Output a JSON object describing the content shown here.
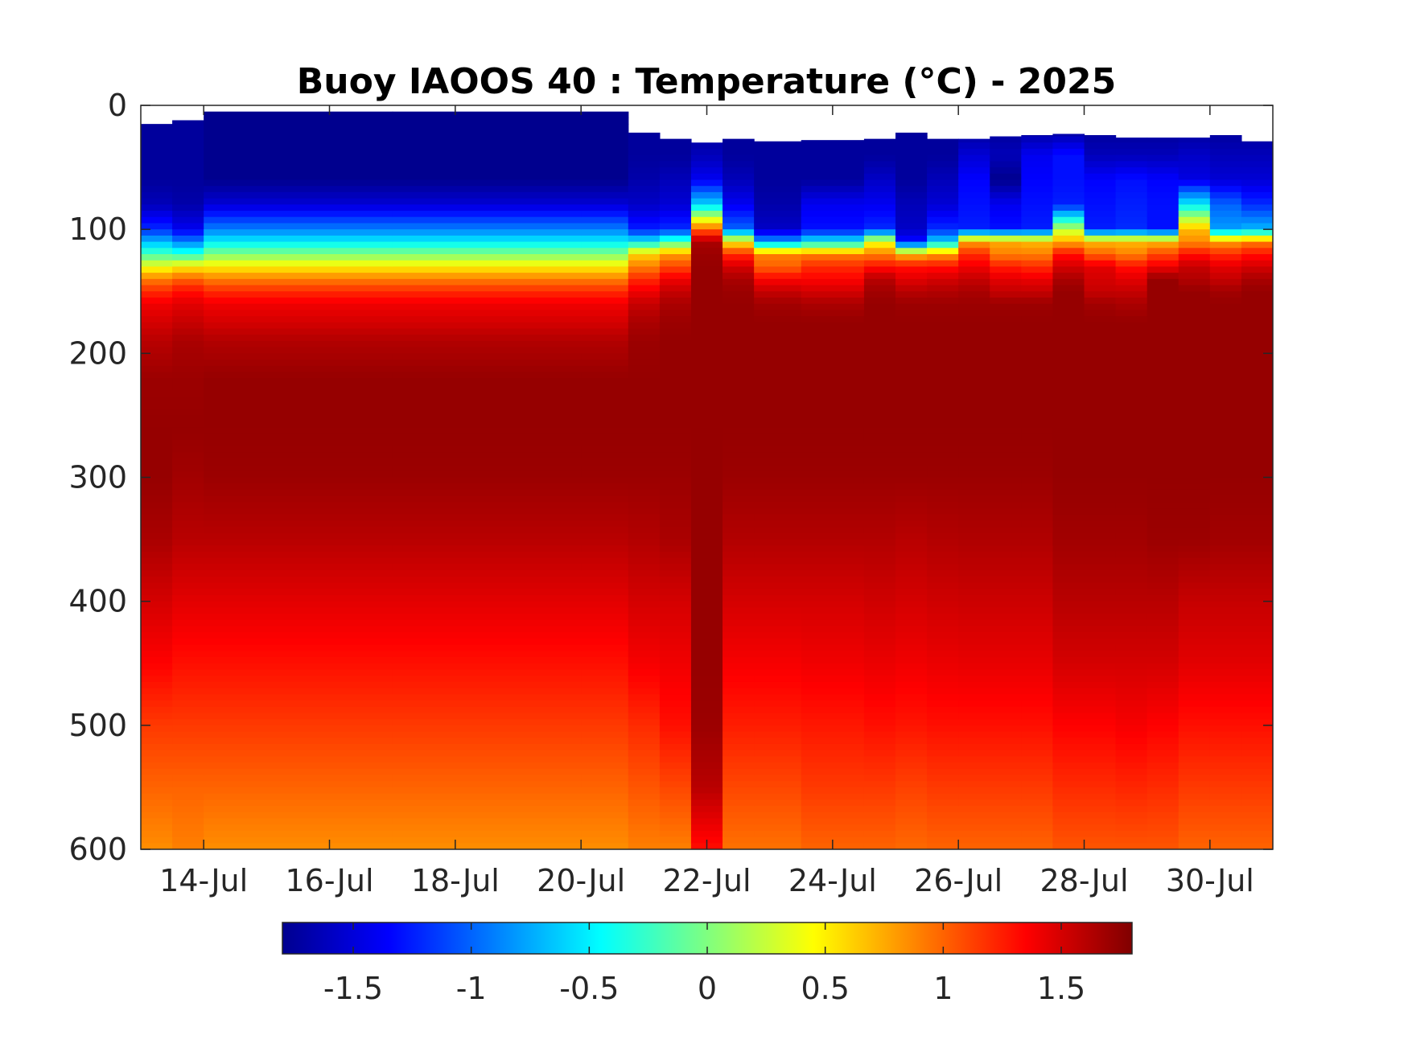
{
  "chart_data": {
    "type": "heatmap",
    "title": "Buoy IAOOS 40 : Temperature (°C) - 2025",
    "xlabel": "",
    "ylabel": "",
    "x_axis": {
      "unit": "date",
      "year": 2025,
      "range": [
        "2025-07-13",
        "2025-07-31"
      ],
      "tick_labels": [
        "14-Jul",
        "16-Jul",
        "18-Jul",
        "20-Jul",
        "22-Jul",
        "24-Jul",
        "26-Jul",
        "28-Jul",
        "30-Jul"
      ],
      "tick_dates": [
        "2025-07-14",
        "2025-07-16",
        "2025-07-18",
        "2025-07-20",
        "2025-07-22",
        "2025-07-24",
        "2025-07-26",
        "2025-07-28",
        "2025-07-30"
      ]
    },
    "y_axis": {
      "range": [
        0,
        600
      ],
      "reversed": true,
      "tick_values": [
        0,
        100,
        200,
        300,
        400,
        500,
        600
      ],
      "tick_labels": [
        "0",
        "100",
        "200",
        "300",
        "400",
        "500",
        "600"
      ]
    },
    "colorbar": {
      "colormap": "jet",
      "range": [
        -1.8,
        1.8
      ],
      "tick_values": [
        -1.5,
        -1,
        -0.5,
        0,
        0.5,
        1,
        1.5
      ],
      "tick_labels": [
        "-1.5",
        "-1",
        "-0.5",
        "0",
        "0.5",
        "1",
        "1.5"
      ],
      "orientation": "horizontal",
      "placement": "bottom"
    },
    "profile_depth_levels": [
      0,
      20,
      40,
      60,
      80,
      100,
      110,
      120,
      130,
      140,
      150,
      160,
      175,
      190,
      220,
      260,
      300,
      350,
      400,
      450,
      500,
      550,
      600
    ],
    "profiles": [
      {
        "date": "2025-07-13.0",
        "top_depth": 15,
        "temperature": [
          -1.7,
          -1.7,
          -1.7,
          -1.7,
          -1.6,
          -1.2,
          -0.7,
          -0.2,
          0.4,
          0.9,
          1.2,
          1.4,
          1.5,
          1.6,
          1.7,
          1.72,
          1.72,
          1.65,
          1.5,
          1.35,
          1.15,
          1.0,
          0.85
        ]
      },
      {
        "date": "2025-07-13.5",
        "top_depth": 12,
        "temperature": [
          -1.7,
          -1.7,
          -1.7,
          -1.7,
          -1.65,
          -1.4,
          -0.9,
          -0.3,
          0.5,
          1.0,
          1.3,
          1.45,
          1.55,
          1.65,
          1.7,
          1.72,
          1.68,
          1.6,
          1.45,
          1.3,
          1.15,
          1.0,
          0.9
        ]
      },
      {
        "date": "2025-07-14.0",
        "top_depth": 5,
        "temperature": [
          -1.75,
          -1.75,
          -1.75,
          -1.75,
          -1.5,
          -0.9,
          -0.5,
          0.0,
          0.5,
          0.9,
          1.2,
          1.4,
          1.5,
          1.62,
          1.72,
          1.72,
          1.7,
          1.6,
          1.45,
          1.3,
          1.15,
          1.0,
          0.85
        ]
      },
      {
        "date": "2025-07-17.0",
        "top_depth": 5,
        "temperature": [
          -1.75,
          -1.75,
          -1.75,
          -1.75,
          -1.5,
          -0.9,
          -0.5,
          0.0,
          0.5,
          0.9,
          1.2,
          1.4,
          1.5,
          1.62,
          1.72,
          1.72,
          1.7,
          1.6,
          1.45,
          1.3,
          1.15,
          1.0,
          0.85
        ]
      },
      {
        "date": "2025-07-20.0",
        "top_depth": 5,
        "temperature": [
          -1.75,
          -1.75,
          -1.75,
          -1.75,
          -1.5,
          -0.9,
          -0.5,
          0.0,
          0.5,
          0.9,
          1.2,
          1.4,
          1.5,
          1.62,
          1.72,
          1.72,
          1.7,
          1.6,
          1.45,
          1.3,
          1.15,
          1.0,
          0.85
        ]
      },
      {
        "date": "2025-07-20.75",
        "top_depth": 22,
        "temperature": [
          -1.7,
          -1.7,
          -1.7,
          -1.65,
          -1.55,
          -1.25,
          -0.5,
          0.6,
          0.9,
          1.2,
          1.4,
          1.55,
          1.65,
          1.7,
          1.72,
          1.72,
          1.7,
          1.62,
          1.5,
          1.38,
          1.2,
          1.05,
          0.9
        ]
      },
      {
        "date": "2025-07-21.25",
        "top_depth": 27,
        "temperature": [
          -1.7,
          -1.7,
          -1.7,
          -1.6,
          -1.5,
          -1.2,
          -0.2,
          0.8,
          1.1,
          1.4,
          1.55,
          1.65,
          1.7,
          1.72,
          1.72,
          1.72,
          1.7,
          1.65,
          1.5,
          1.4,
          1.3,
          1.1,
          0.9
        ]
      },
      {
        "date": "2025-07-21.75",
        "top_depth": 30,
        "temperature": [
          -1.7,
          -1.7,
          -1.6,
          -1.4,
          -0.6,
          1.0,
          1.65,
          1.7,
          1.72,
          1.72,
          1.72,
          1.72,
          1.72,
          1.72,
          1.72,
          1.72,
          1.72,
          1.72,
          1.72,
          1.72,
          1.7,
          1.6,
          1.3
        ]
      },
      {
        "date": "2025-07-22.25",
        "top_depth": 27,
        "temperature": [
          -1.7,
          -1.7,
          -1.7,
          -1.6,
          -1.4,
          -1.0,
          0.5,
          1.2,
          1.5,
          1.65,
          1.7,
          1.72,
          1.72,
          1.72,
          1.72,
          1.72,
          1.7,
          1.62,
          1.5,
          1.38,
          1.25,
          1.1,
          0.95
        ]
      },
      {
        "date": "2025-07-22.75",
        "top_depth": 29,
        "temperature": [
          -1.7,
          -1.7,
          -1.7,
          -1.7,
          -1.65,
          -1.55,
          -0.8,
          0.9,
          1.0,
          1.35,
          1.55,
          1.68,
          1.72,
          1.72,
          1.72,
          1.72,
          1.7,
          1.62,
          1.5,
          1.38,
          1.25,
          1.1,
          0.95
        ]
      },
      {
        "date": "2025-07-23.5",
        "top_depth": 28,
        "temperature": [
          -1.7,
          -1.7,
          -1.7,
          -1.7,
          -1.4,
          -1.3,
          -0.5,
          0.9,
          1.2,
          1.35,
          1.5,
          1.65,
          1.72,
          1.72,
          1.72,
          1.72,
          1.7,
          1.62,
          1.5,
          1.4,
          1.27,
          1.15,
          1.0
        ]
      },
      {
        "date": "2025-07-24.5",
        "top_depth": 27,
        "temperature": [
          -1.7,
          -1.7,
          -1.7,
          -1.55,
          -1.4,
          -1.2,
          0.4,
          0.9,
          1.3,
          1.6,
          1.68,
          1.72,
          1.72,
          1.72,
          1.72,
          1.72,
          1.7,
          1.62,
          1.52,
          1.42,
          1.3,
          1.15,
          1.0
        ]
      },
      {
        "date": "2025-07-25.0",
        "top_depth": 22,
        "temperature": [
          -1.7,
          -1.7,
          -1.7,
          -1.7,
          -1.6,
          -1.55,
          -1.3,
          0.7,
          1.3,
          1.45,
          1.6,
          1.7,
          1.72,
          1.72,
          1.72,
          1.72,
          1.7,
          1.6,
          1.5,
          1.4,
          1.28,
          1.12,
          0.98
        ]
      },
      {
        "date": "2025-07-25.5",
        "top_depth": 27,
        "temperature": [
          -1.7,
          -1.7,
          -1.7,
          -1.6,
          -1.5,
          -1.2,
          -0.6,
          0.8,
          1.3,
          1.5,
          1.62,
          1.7,
          1.72,
          1.72,
          1.72,
          1.72,
          1.7,
          1.62,
          1.52,
          1.42,
          1.3,
          1.15,
          1.0
        ]
      },
      {
        "date": "2025-07-26.0",
        "top_depth": 27,
        "temperature": [
          -1.7,
          -1.7,
          -1.5,
          -1.35,
          -1.3,
          -1.25,
          0.8,
          1.2,
          1.4,
          1.55,
          1.65,
          1.7,
          1.72,
          1.72,
          1.72,
          1.72,
          1.7,
          1.63,
          1.53,
          1.43,
          1.3,
          1.15,
          1.0
        ]
      },
      {
        "date": "2025-07-26.5",
        "top_depth": 25,
        "temperature": [
          -1.7,
          -1.7,
          -1.6,
          -1.75,
          -1.4,
          -1.3,
          0.75,
          0.9,
          1.25,
          1.45,
          1.55,
          1.7,
          1.72,
          1.72,
          1.72,
          1.72,
          1.7,
          1.63,
          1.53,
          1.43,
          1.3,
          1.15,
          1.0
        ]
      },
      {
        "date": "2025-07-27.0",
        "top_depth": 24,
        "temperature": [
          -1.7,
          -1.7,
          -1.4,
          -1.35,
          -1.3,
          -1.25,
          0.7,
          0.9,
          1.2,
          1.42,
          1.55,
          1.7,
          1.72,
          1.72,
          1.72,
          1.72,
          1.7,
          1.63,
          1.53,
          1.43,
          1.3,
          1.15,
          1.0
        ]
      },
      {
        "date": "2025-07-27.5",
        "top_depth": 23,
        "temperature": [
          -1.7,
          -1.7,
          -1.3,
          -1.3,
          -1.25,
          0.2,
          0.75,
          1.3,
          1.5,
          1.65,
          1.72,
          1.72,
          1.72,
          1.72,
          1.72,
          1.72,
          1.72,
          1.68,
          1.6,
          1.5,
          1.35,
          1.2,
          1.05
        ]
      },
      {
        "date": "2025-07-28.0",
        "top_depth": 24,
        "temperature": [
          -1.7,
          -1.7,
          -1.6,
          -1.35,
          -1.3,
          -1.25,
          0.7,
          1.0,
          1.45,
          1.5,
          1.55,
          1.68,
          1.72,
          1.72,
          1.72,
          1.72,
          1.72,
          1.68,
          1.6,
          1.5,
          1.35,
          1.2,
          1.05
        ]
      },
      {
        "date": "2025-07-28.5",
        "top_depth": 26,
        "temperature": [
          -1.7,
          -1.7,
          -1.6,
          -1.3,
          -1.25,
          -1.2,
          0.7,
          0.9,
          1.3,
          1.45,
          1.55,
          1.65,
          1.72,
          1.72,
          1.72,
          1.72,
          1.72,
          1.68,
          1.6,
          1.5,
          1.38,
          1.22,
          1.05
        ]
      },
      {
        "date": "2025-07-29.0",
        "top_depth": 26,
        "temperature": [
          -1.7,
          -1.7,
          -1.6,
          -1.35,
          -1.3,
          -1.3,
          0.7,
          1.1,
          1.4,
          1.72,
          1.72,
          1.72,
          1.72,
          1.72,
          1.72,
          1.72,
          1.72,
          1.7,
          1.6,
          1.5,
          1.35,
          1.2,
          1.05
        ]
      },
      {
        "date": "2025-07-29.5",
        "top_depth": 26,
        "temperature": [
          -1.7,
          -1.7,
          -1.55,
          -1.45,
          -0.5,
          0.7,
          0.85,
          1.3,
          1.55,
          1.62,
          1.72,
          1.72,
          1.72,
          1.72,
          1.72,
          1.72,
          1.72,
          1.7,
          1.55,
          1.45,
          1.3,
          1.15,
          1.0
        ]
      },
      {
        "date": "2025-07-30.0",
        "top_depth": 24,
        "temperature": [
          -1.7,
          -1.7,
          -1.6,
          -1.5,
          -1.0,
          -0.8,
          0.8,
          1.2,
          1.45,
          1.55,
          1.68,
          1.72,
          1.72,
          1.72,
          1.72,
          1.72,
          1.72,
          1.68,
          1.55,
          1.45,
          1.3,
          1.15,
          1.0
        ]
      },
      {
        "date": "2025-07-30.5",
        "top_depth": 29,
        "temperature": [
          -1.7,
          -1.7,
          -1.6,
          -1.5,
          -1.2,
          -0.7,
          0.9,
          1.3,
          1.5,
          1.65,
          1.72,
          1.72,
          1.72,
          1.72,
          1.72,
          1.72,
          1.72,
          1.68,
          1.55,
          1.45,
          1.3,
          1.15,
          1.0
        ]
      }
    ]
  }
}
